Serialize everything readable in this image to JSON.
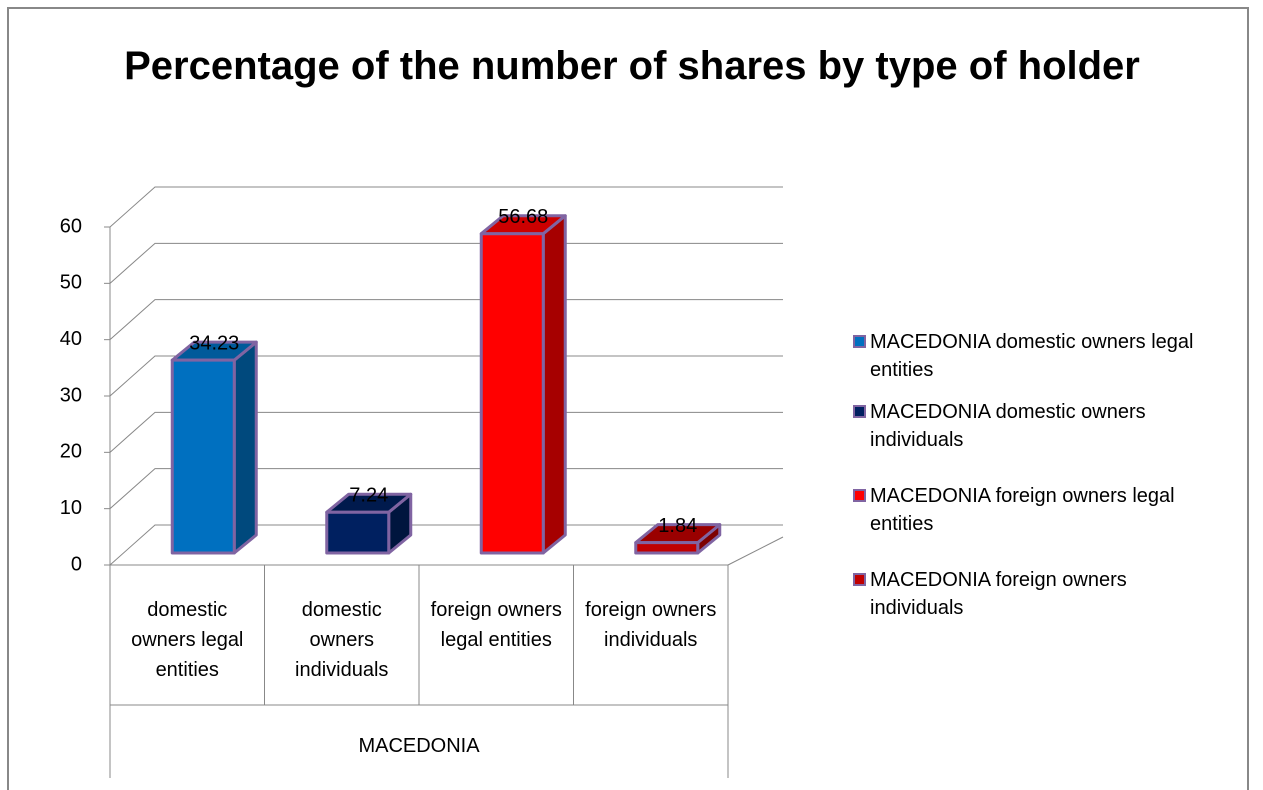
{
  "chart_data": {
    "type": "bar3d",
    "title": "Percentage of the number of shares by type of holder",
    "categories": [
      "domestic owners legal entities",
      "domestic owners individuals",
      "foreign owners legal entities",
      "foreign owners individuals"
    ],
    "group_label": "MACEDONIA",
    "values": [
      34.23,
      7.24,
      56.68,
      1.84
    ],
    "colors": [
      "#0070c0",
      "#002060",
      "#ff0000",
      "#c00000"
    ],
    "legend_labels": [
      "MACEDONIA domestic owners legal entities",
      "MACEDONIA domestic owners individuals",
      "MACEDONIA foreign owners legal entities",
      "MACEDONIA foreign owners individuals"
    ],
    "ylim": [
      0,
      60
    ],
    "yticks": [
      0,
      10,
      20,
      30,
      40,
      50,
      60
    ],
    "grid": true,
    "legend_position": "right"
  }
}
